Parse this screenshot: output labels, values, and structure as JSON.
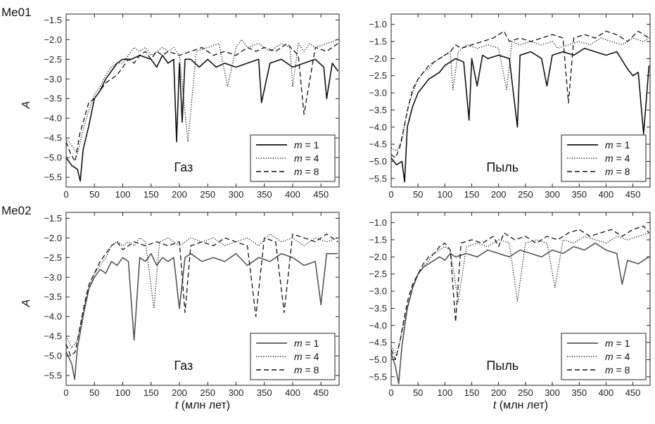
{
  "rows": [
    {
      "label": "Me01"
    },
    {
      "label": "Me02"
    }
  ],
  "chart_data": [
    {
      "type": "line",
      "id": "me01-gas",
      "panel_text": "Газ",
      "ylabel": "A",
      "xlabel": "",
      "xlim": [
        0,
        482
      ],
      "ylim": [
        -5.75,
        -1.35
      ],
      "xticks": [
        0,
        50,
        100,
        150,
        200,
        250,
        300,
        350,
        400,
        450
      ],
      "yticks": [
        -5.5,
        -5.0,
        -4.5,
        -4.0,
        -3.5,
        -3.0,
        -2.5,
        -2.0,
        -1.5
      ],
      "legend_position": "lower-right",
      "legend": [
        "m = 1",
        "m = 4",
        "m = 8"
      ],
      "series": [
        {
          "name": "m = 1",
          "style": "solid",
          "color": "#111111",
          "x": [
            0,
            10,
            20,
            25,
            30,
            40,
            50,
            60,
            70,
            80,
            90,
            100,
            115,
            130,
            150,
            160,
            170,
            180,
            190,
            195,
            200,
            205,
            210,
            220,
            235,
            250,
            265,
            280,
            300,
            320,
            340,
            345,
            360,
            380,
            400,
            420,
            440,
            455,
            460,
            470,
            480
          ],
          "y": [
            -5.0,
            -5.2,
            -5.3,
            -5.6,
            -4.8,
            -4.2,
            -3.5,
            -3.3,
            -3.0,
            -2.8,
            -2.6,
            -2.5,
            -2.5,
            -2.4,
            -2.5,
            -2.7,
            -2.4,
            -2.6,
            -2.5,
            -4.6,
            -2.6,
            -4.1,
            -2.5,
            -2.5,
            -2.7,
            -2.5,
            -2.7,
            -2.6,
            -2.7,
            -2.6,
            -2.5,
            -3.6,
            -2.6,
            -2.5,
            -2.7,
            -2.6,
            -2.5,
            -2.7,
            -3.5,
            -2.6,
            -2.8
          ]
        },
        {
          "name": "m = 4",
          "style": "dotted",
          "color": "#111111",
          "x": [
            0,
            10,
            20,
            30,
            40,
            50,
            60,
            70,
            80,
            90,
            100,
            110,
            120,
            130,
            140,
            150,
            160,
            170,
            180,
            190,
            200,
            215,
            230,
            250,
            270,
            285,
            300,
            310,
            320,
            340,
            360,
            380,
            395,
            400,
            410,
            420,
            430,
            440,
            460,
            480
          ],
          "y": [
            -4.5,
            -4.7,
            -4.9,
            -4.3,
            -3.8,
            -3.4,
            -3.2,
            -2.9,
            -2.7,
            -2.6,
            -2.6,
            -2.4,
            -2.2,
            -2.3,
            -2.2,
            -2.4,
            -2.3,
            -2.2,
            -2.3,
            -2.2,
            -2.4,
            -4.6,
            -2.3,
            -2.2,
            -2.1,
            -3.2,
            -2.2,
            -2.0,
            -2.2,
            -2.1,
            -2.3,
            -2.1,
            -2.2,
            -3.2,
            -2.1,
            -2.3,
            -2.1,
            -2.2,
            -2.1,
            -2.0
          ]
        },
        {
          "name": "m = 8",
          "style": "dashed",
          "color": "#111111",
          "x": [
            0,
            8,
            16,
            24,
            32,
            40,
            50,
            60,
            70,
            80,
            90,
            100,
            110,
            120,
            130,
            140,
            150,
            160,
            170,
            180,
            200,
            220,
            240,
            260,
            280,
            300,
            320,
            335,
            350,
            370,
            390,
            410,
            420,
            440,
            460,
            480
          ],
          "y": [
            -4.6,
            -4.9,
            -5.1,
            -4.4,
            -4.0,
            -3.6,
            -3.5,
            -3.3,
            -3.1,
            -3.0,
            -2.9,
            -2.7,
            -2.5,
            -2.6,
            -2.4,
            -2.3,
            -2.5,
            -2.3,
            -2.4,
            -2.3,
            -2.4,
            -2.3,
            -2.2,
            -2.4,
            -2.3,
            -2.4,
            -2.2,
            -2.3,
            -2.2,
            -2.3,
            -2.1,
            -2.4,
            -3.9,
            -2.2,
            -2.3,
            -2.1
          ]
        }
      ]
    },
    {
      "type": "line",
      "id": "me01-dust",
      "panel_text": "Пыль",
      "ylabel": "",
      "xlabel": "",
      "xlim": [
        0,
        482
      ],
      "ylim": [
        -5.75,
        -0.7
      ],
      "xticks": [
        0,
        50,
        100,
        150,
        200,
        250,
        300,
        350,
        400,
        450
      ],
      "yticks": [
        -5.5,
        -5.0,
        -4.5,
        -4.0,
        -3.5,
        -3.0,
        -2.5,
        -2.0,
        -1.5,
        -1.0
      ],
      "legend_position": "lower-right",
      "legend": [
        "m = 1",
        "m = 4",
        "m = 8"
      ],
      "series": [
        {
          "name": "m = 1",
          "style": "solid",
          "color": "#111111",
          "x": [
            0,
            10,
            20,
            25,
            30,
            40,
            50,
            60,
            70,
            80,
            90,
            100,
            110,
            120,
            135,
            145,
            150,
            160,
            170,
            180,
            200,
            220,
            235,
            240,
            260,
            280,
            290,
            300,
            320,
            340,
            360,
            380,
            400,
            420,
            440,
            450,
            460,
            470,
            480
          ],
          "y": [
            -4.9,
            -5.1,
            -5.0,
            -5.6,
            -4.0,
            -3.4,
            -3.0,
            -2.8,
            -2.6,
            -2.5,
            -2.4,
            -2.2,
            -2.1,
            -2.0,
            -2.1,
            -3.8,
            -2.0,
            -2.8,
            -1.9,
            -2.0,
            -1.9,
            -2.0,
            -4.0,
            -1.9,
            -1.8,
            -2.0,
            -2.8,
            -1.9,
            -1.8,
            -1.9,
            -1.7,
            -1.8,
            -1.9,
            -1.8,
            -2.3,
            -2.5,
            -2.4,
            -4.2,
            -2.2
          ]
        },
        {
          "name": "m = 4",
          "style": "dotted",
          "color": "#111111",
          "x": [
            0,
            10,
            20,
            30,
            40,
            50,
            60,
            70,
            80,
            90,
            100,
            110,
            115,
            125,
            140,
            160,
            180,
            200,
            215,
            225,
            240,
            260,
            280,
            300,
            310,
            330,
            350,
            370,
            390,
            410,
            430,
            450,
            470,
            480
          ],
          "y": [
            -4.6,
            -4.7,
            -4.4,
            -3.5,
            -3.0,
            -2.6,
            -2.4,
            -2.3,
            -2.1,
            -2.0,
            -1.9,
            -1.8,
            -2.9,
            -1.8,
            -1.6,
            -1.7,
            -1.6,
            -1.7,
            -2.9,
            -1.5,
            -1.6,
            -1.5,
            -1.6,
            -1.5,
            -1.7,
            -1.6,
            -1.5,
            -1.6,
            -1.4,
            -1.5,
            -1.6,
            -1.4,
            -1.5,
            -1.4
          ]
        },
        {
          "name": "m = 8",
          "style": "dashed",
          "color": "#111111",
          "x": [
            0,
            8,
            16,
            24,
            32,
            40,
            50,
            60,
            70,
            80,
            90,
            100,
            110,
            120,
            130,
            150,
            170,
            190,
            210,
            220,
            240,
            260,
            280,
            300,
            320,
            330,
            340,
            360,
            380,
            400,
            420,
            440,
            460,
            480
          ],
          "y": [
            -4.8,
            -4.9,
            -4.6,
            -4.0,
            -3.4,
            -2.9,
            -2.6,
            -2.4,
            -2.2,
            -2.1,
            -2.0,
            -1.9,
            -1.8,
            -1.6,
            -1.7,
            -1.6,
            -1.5,
            -1.4,
            -1.2,
            -1.5,
            -1.4,
            -1.5,
            -1.4,
            -1.3,
            -1.4,
            -3.3,
            -1.4,
            -1.3,
            -1.4,
            -1.2,
            -1.3,
            -1.5,
            -1.2,
            -1.4
          ]
        }
      ]
    },
    {
      "type": "line",
      "id": "me02-gas",
      "panel_text": "Газ",
      "ylabel": "A",
      "xlabel": "t (млн лет)",
      "xlim": [
        0,
        482
      ],
      "ylim": [
        -5.75,
        -1.35
      ],
      "xticks": [
        0,
        50,
        100,
        150,
        200,
        250,
        300,
        350,
        400,
        450
      ],
      "yticks": [
        -5.5,
        -5.0,
        -4.5,
        -4.0,
        -3.5,
        -3.0,
        -2.5,
        -2.0,
        -1.5
      ],
      "legend_position": "lower-right",
      "legend": [
        "m = 1",
        "m = 4",
        "m = 8"
      ],
      "series": [
        {
          "name": "m = 1",
          "style": "solid",
          "color": "#555555",
          "x": [
            0,
            10,
            15,
            20,
            30,
            40,
            50,
            60,
            70,
            80,
            90,
            100,
            110,
            120,
            130,
            140,
            150,
            160,
            170,
            180,
            190,
            200,
            210,
            220,
            240,
            260,
            280,
            300,
            320,
            340,
            360,
            380,
            400,
            420,
            440,
            450,
            460,
            480
          ],
          "y": [
            -4.9,
            -5.2,
            -5.6,
            -4.8,
            -4.0,
            -3.3,
            -3.0,
            -2.8,
            -2.9,
            -2.6,
            -2.7,
            -2.5,
            -2.6,
            -4.6,
            -2.5,
            -2.6,
            -2.4,
            -2.7,
            -2.5,
            -2.6,
            -2.5,
            -3.8,
            -2.5,
            -2.4,
            -2.6,
            -2.5,
            -2.6,
            -2.4,
            -2.7,
            -2.5,
            -2.6,
            -2.4,
            -2.5,
            -2.7,
            -2.6,
            -3.7,
            -2.4,
            -2.4
          ]
        },
        {
          "name": "m = 4",
          "style": "dotted",
          "color": "#111111",
          "x": [
            0,
            10,
            20,
            30,
            40,
            50,
            60,
            70,
            80,
            90,
            100,
            110,
            120,
            130,
            140,
            155,
            165,
            180,
            200,
            220,
            240,
            260,
            280,
            300,
            320,
            340,
            360,
            380,
            400,
            420,
            440,
            460,
            480
          ],
          "y": [
            -4.5,
            -4.8,
            -4.6,
            -3.9,
            -3.3,
            -2.9,
            -2.7,
            -2.5,
            -2.2,
            -2.1,
            -2.2,
            -2.1,
            -2.2,
            -2.0,
            -2.1,
            -3.8,
            -2.1,
            -2.0,
            -2.2,
            -2.0,
            -2.1,
            -2.0,
            -2.2,
            -2.1,
            -2.0,
            -2.2,
            -1.9,
            -2.1,
            -2.0,
            -2.2,
            -2.0,
            -2.1,
            -2.0
          ]
        },
        {
          "name": "m = 8",
          "style": "dashed",
          "color": "#111111",
          "x": [
            0,
            8,
            16,
            24,
            32,
            40,
            50,
            60,
            70,
            80,
            90,
            100,
            110,
            120,
            140,
            160,
            180,
            200,
            210,
            220,
            240,
            260,
            280,
            300,
            320,
            335,
            350,
            370,
            385,
            400,
            420,
            440,
            460,
            480
          ],
          "y": [
            -4.7,
            -5.0,
            -4.9,
            -4.3,
            -3.7,
            -3.2,
            -2.9,
            -2.6,
            -2.4,
            -2.2,
            -2.1,
            -2.3,
            -2.2,
            -2.1,
            -2.2,
            -2.1,
            -2.2,
            -2.1,
            -3.9,
            -2.2,
            -2.1,
            -2.2,
            -2.0,
            -2.1,
            -2.2,
            -4.0,
            -2.0,
            -2.1,
            -3.9,
            -1.9,
            -2.0,
            -2.1,
            -1.9,
            -2.1
          ]
        }
      ]
    },
    {
      "type": "line",
      "id": "me02-dust",
      "panel_text": "Пыль",
      "ylabel": "",
      "xlabel": "t (млн лет)",
      "xlim": [
        0,
        482
      ],
      "ylim": [
        -5.75,
        -0.7
      ],
      "xticks": [
        0,
        50,
        100,
        150,
        200,
        250,
        300,
        350,
        400,
        450
      ],
      "yticks": [
        -5.5,
        -5.0,
        -4.5,
        -4.0,
        -3.5,
        -3.0,
        -2.5,
        -2.0,
        -1.5,
        -1.0
      ],
      "legend_position": "lower-right",
      "legend": [
        "m = 1",
        "m = 4",
        "m = 8"
      ],
      "series": [
        {
          "name": "m = 1",
          "style": "solid",
          "color": "#555555",
          "x": [
            0,
            8,
            14,
            20,
            30,
            40,
            50,
            60,
            70,
            80,
            90,
            100,
            110,
            120,
            140,
            160,
            180,
            200,
            220,
            240,
            260,
            280,
            300,
            320,
            340,
            360,
            380,
            400,
            420,
            430,
            440,
            460,
            480
          ],
          "y": [
            -4.8,
            -5.2,
            -5.7,
            -4.6,
            -3.5,
            -2.9,
            -2.5,
            -2.3,
            -2.2,
            -2.1,
            -2.0,
            -2.1,
            -1.9,
            -2.0,
            -1.9,
            -2.0,
            -1.8,
            -1.9,
            -2.0,
            -1.8,
            -1.9,
            -2.0,
            -1.8,
            -1.9,
            -1.7,
            -1.8,
            -1.6,
            -1.8,
            -1.9,
            -2.8,
            -2.1,
            -2.2,
            -2.0
          ]
        },
        {
          "name": "m = 4",
          "style": "dotted",
          "color": "#111111",
          "x": [
            0,
            10,
            20,
            30,
            40,
            50,
            60,
            70,
            80,
            90,
            100,
            110,
            125,
            140,
            160,
            180,
            200,
            220,
            235,
            250,
            270,
            290,
            305,
            320,
            340,
            360,
            380,
            400,
            420,
            440,
            460,
            480
          ],
          "y": [
            -4.6,
            -4.9,
            -4.2,
            -3.5,
            -2.9,
            -2.5,
            -2.3,
            -2.1,
            -1.9,
            -1.8,
            -1.7,
            -1.8,
            -3.3,
            -1.7,
            -1.6,
            -1.7,
            -1.5,
            -1.6,
            -3.3,
            -1.6,
            -1.5,
            -1.6,
            -2.9,
            -1.5,
            -1.6,
            -1.4,
            -1.5,
            -1.6,
            -1.4,
            -1.5,
            -1.4,
            -1.3
          ]
        },
        {
          "name": "m = 8",
          "style": "dashed",
          "color": "#111111",
          "x": [
            0,
            8,
            16,
            24,
            32,
            40,
            50,
            60,
            70,
            80,
            90,
            100,
            110,
            120,
            130,
            150,
            170,
            190,
            200,
            210,
            230,
            250,
            270,
            290,
            310,
            330,
            350,
            370,
            390,
            410,
            430,
            450,
            470,
            480
          ],
          "y": [
            -4.7,
            -5.0,
            -4.5,
            -3.8,
            -3.2,
            -2.8,
            -2.5,
            -2.2,
            -2.0,
            -1.9,
            -1.7,
            -1.6,
            -1.8,
            -3.9,
            -1.6,
            -1.5,
            -1.6,
            -1.4,
            -1.7,
            -1.3,
            -1.5,
            -1.4,
            -1.6,
            -1.4,
            -1.5,
            -1.3,
            -1.2,
            -1.4,
            -1.3,
            -1.2,
            -1.4,
            -1.2,
            -1.1,
            -1.3
          ]
        }
      ]
    }
  ]
}
